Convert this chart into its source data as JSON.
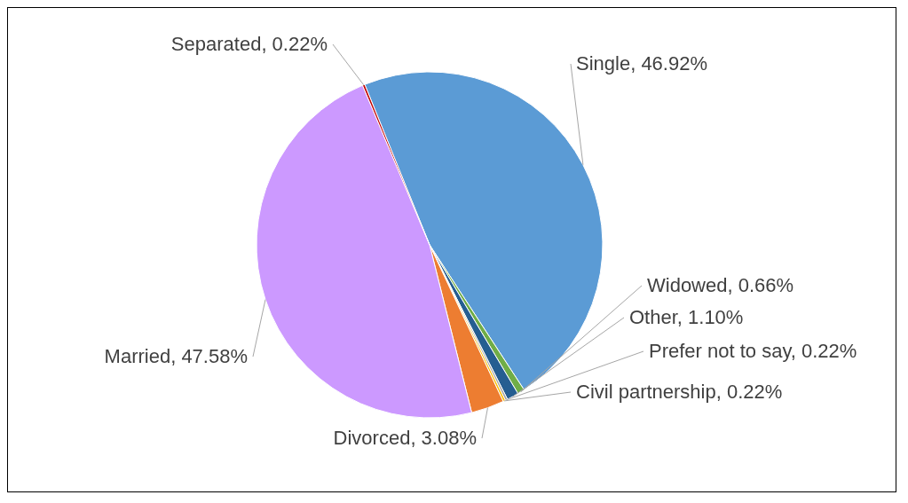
{
  "chart_data": {
    "type": "pie",
    "categories": [
      "Single",
      "Widowed",
      "Other",
      "Prefer not to say",
      "Civil partnership",
      "Divorced",
      "Married",
      "Separated"
    ],
    "values": [
      46.92,
      0.66,
      1.1,
      0.22,
      0.22,
      3.08,
      47.58,
      0.22
    ],
    "value_labels": [
      "46.92%",
      "0.66%",
      "1.10%",
      "0.22%",
      "0.22%",
      "3.08%",
      "47.58%",
      "0.22%"
    ],
    "colors": [
      "#5b9bd5",
      "#70ad47",
      "#255e91",
      "#a5a5a5",
      "#ffc000",
      "#ed7d31",
      "#cc99ff",
      "#c00000"
    ],
    "legend": false
  }
}
